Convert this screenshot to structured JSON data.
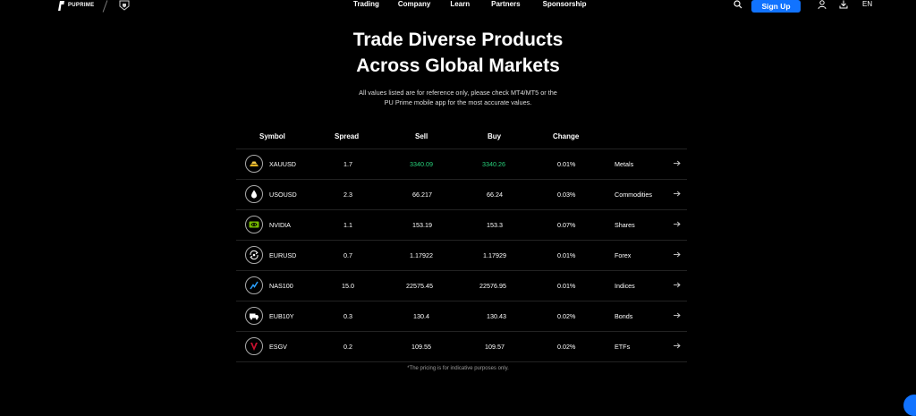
{
  "header": {
    "logo_text": "PUPRIME",
    "nav": [
      "Trading",
      "Company",
      "Learn",
      "Partners",
      "Sponsorship"
    ],
    "signup_label": "Sign Up",
    "lang": "EN",
    "icons": [
      "search-icon",
      "user-icon",
      "download-icon"
    ]
  },
  "hero": {
    "title_line1": "Trade Diverse Products",
    "title_line2": "Across Global Markets",
    "subtitle_line1": "All values listed are for reference only, please check MT4/MT5 or the",
    "subtitle_line2": "PU Prime mobile app for the most accurate values."
  },
  "table": {
    "headers": {
      "symbol": "Symbol",
      "spread": "Spread",
      "sell": "Sell",
      "buy": "Buy",
      "change": "Change"
    },
    "rows": [
      {
        "symbol": "XAUUSD",
        "spread": "1.7",
        "sell": "3340.09",
        "buy": "3340.26",
        "change": "0.01%",
        "category": "Metals",
        "icon": "gold-bars-icon",
        "price_color": "#27d07a"
      },
      {
        "symbol": "USOUSD",
        "spread": "2.3",
        "sell": "66.217",
        "buy": "66.24",
        "change": "0.03%",
        "category": "Commodities",
        "icon": "oil-drop-icon"
      },
      {
        "symbol": "NVIDIA",
        "spread": "1.1",
        "sell": "153.19",
        "buy": "153.3",
        "change": "0.07%",
        "category": "Shares",
        "icon": "nvidia-logo-icon"
      },
      {
        "symbol": "EURUSD",
        "spread": "0.7",
        "sell": "1.17922",
        "buy": "1.17929",
        "change": "0.01%",
        "category": "Forex",
        "icon": "currency-exchange-icon"
      },
      {
        "symbol": "NAS100",
        "spread": "15.0",
        "sell": "22575.45",
        "buy": "22576.95",
        "change": "0.01%",
        "category": "Indices",
        "icon": "index-chart-icon"
      },
      {
        "symbol": "EUB10Y",
        "spread": "0.3",
        "sell": "130.4",
        "buy": "130.43",
        "change": "0.02%",
        "category": "Bonds",
        "icon": "bond-truck-icon"
      },
      {
        "symbol": "ESGV",
        "spread": "0.2",
        "sell": "109.55",
        "buy": "109.57",
        "change": "0.02%",
        "category": "ETFs",
        "icon": "vanguard-logo-icon"
      }
    ]
  },
  "footnote": "*The pricing is for indicative purposes only.",
  "colors": {
    "accent": "#1173ff",
    "price_up": "#27d07a",
    "background": "#000000"
  }
}
